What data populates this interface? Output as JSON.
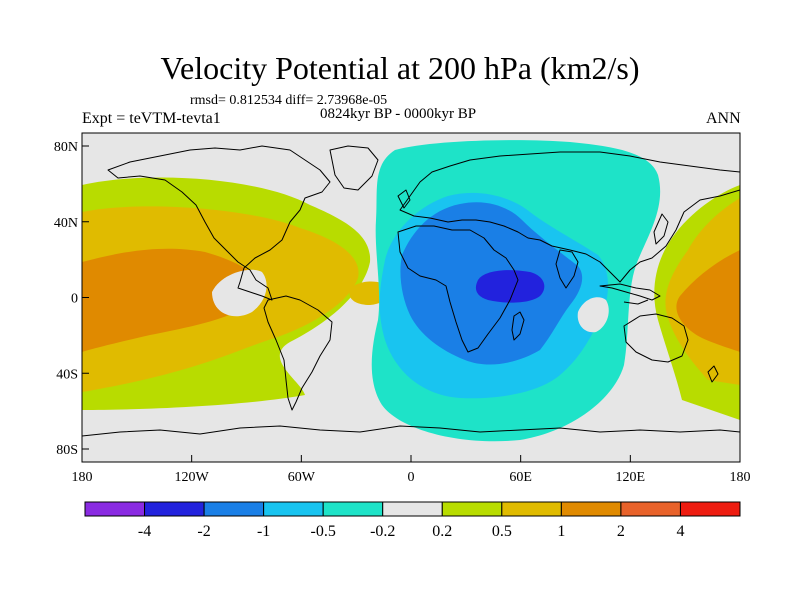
{
  "title": "Velocity Potential at 200 hPa (km2/s)",
  "stats": "rmsd= 0.812534 diff= 2.73968e-05",
  "period": "0824kyr BP - 0000kyr BP",
  "experiment": "Expt = teVTM-tevta1",
  "season": "ANN",
  "map": {
    "lat_ticks": [
      "80N",
      "40N",
      "0",
      "40S",
      "80S"
    ],
    "lon_ticks": [
      "180",
      "120W",
      "60W",
      "0",
      "60E",
      "120E",
      "180"
    ]
  },
  "colorbar": {
    "colors": [
      "#8a2be2",
      "#2222dd",
      "#1a7fe6",
      "#19c4f0",
      "#1ee3c8",
      "#e6e6e6",
      "#b8dc00",
      "#e0bb00",
      "#e08a00",
      "#e8622a",
      "#ee1c10"
    ],
    "labels": [
      "-4",
      "-2",
      "-1",
      "-0.5",
      "-0.2",
      "0.2",
      "0.5",
      "1",
      "2",
      "4"
    ]
  },
  "palette": {
    "neutral": "#e6e6e6",
    "lime": "#b8dc00",
    "yellow": "#e0bb00",
    "orange": "#e08a00",
    "aqua": "#1ee3c8",
    "cyan": "#19c4f0",
    "blue": "#1a7fe6",
    "deepblue": "#2222dd"
  }
}
